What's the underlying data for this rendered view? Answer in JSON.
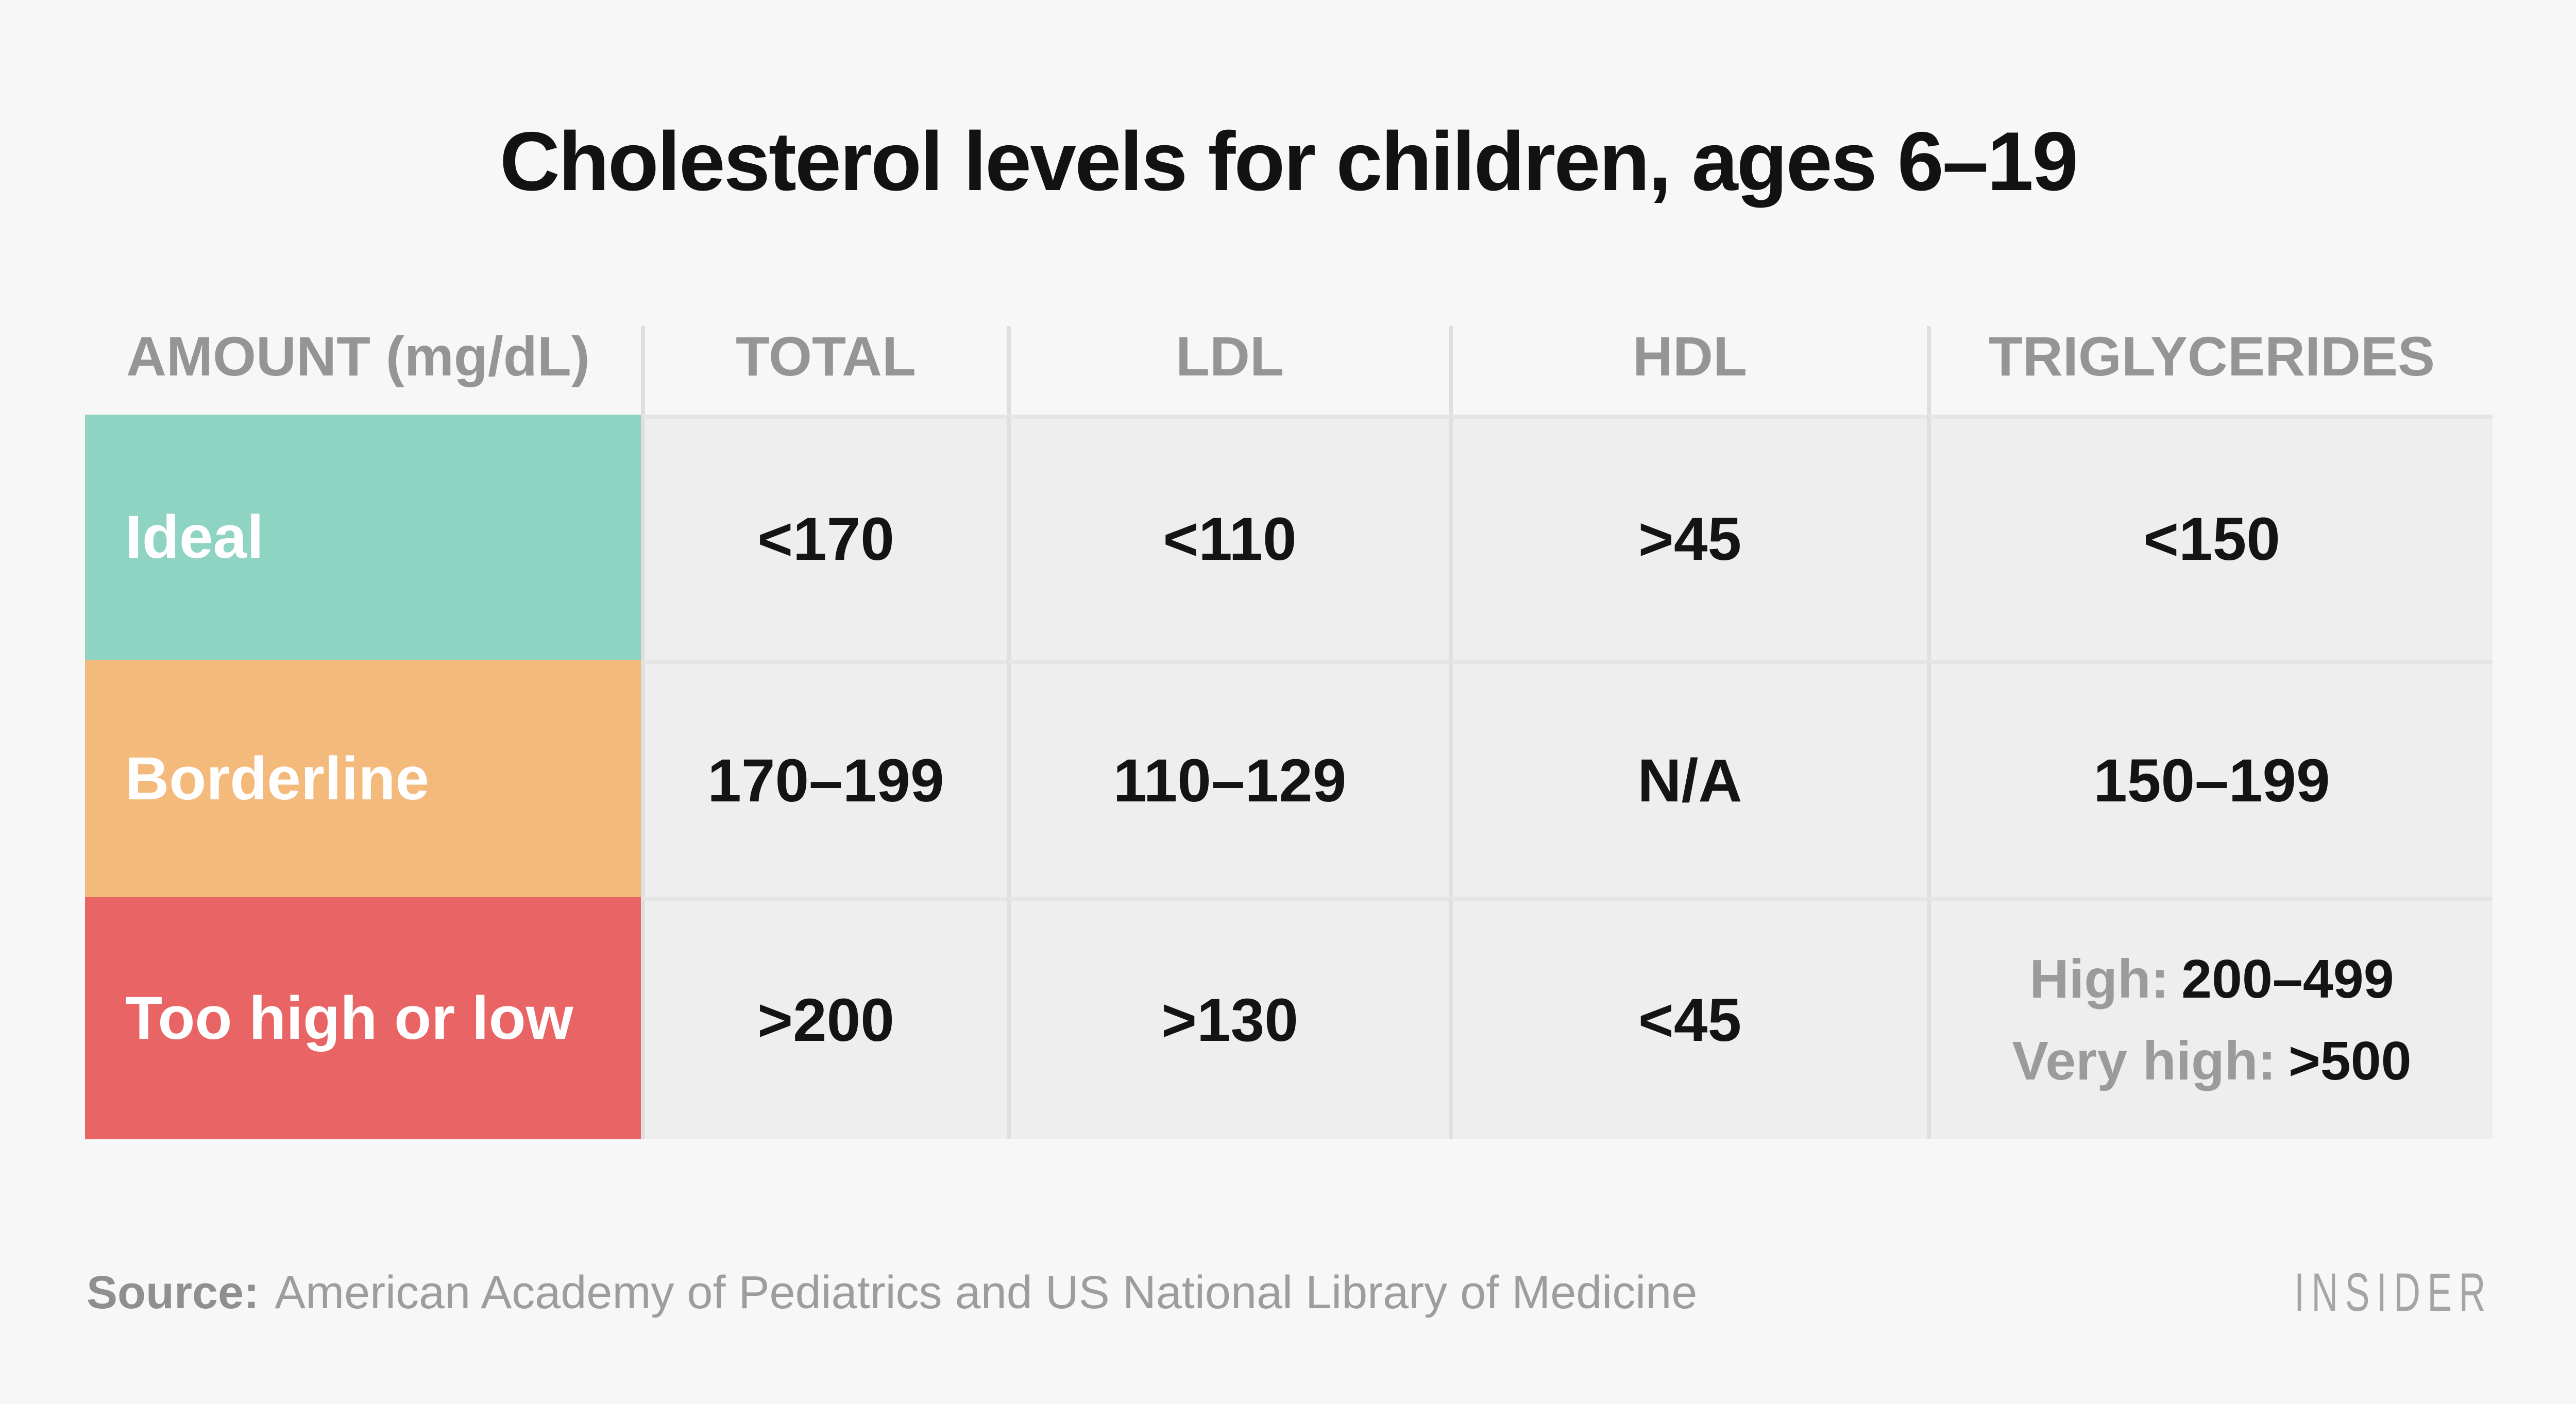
{
  "title": "Cholesterol levels for children, ages 6–19",
  "header": [
    "AMOUNT (mg/dL)",
    "TOTAL",
    "LDL",
    "HDL",
    "TRIGLYCERIDES"
  ],
  "rows": {
    "ideal": {
      "label": "Ideal",
      "total": "<170",
      "ldl": "<110",
      "hdl": ">45",
      "tg": "<150"
    },
    "borderline": {
      "label": "Borderline",
      "total": "170–199",
      "ldl": "110–129",
      "hdl": "N/A",
      "tg": "150–199"
    },
    "too_high_or_low": {
      "label": "Too high or low",
      "total": ">200",
      "ldl": ">130",
      "hdl": "<45",
      "tg_high_label": "High:",
      "tg_high_value": "200–499",
      "tg_very_high_label": "Very high:",
      "tg_very_high_value": ">500"
    }
  },
  "colors": {
    "ideal_row": "#8fd3c2",
    "borderline_row": "#f4ba7c",
    "too_high_or_low_row": "#e96565",
    "header_text": "#959595",
    "value_text": "#141414",
    "cell_bg": "#eeeeee",
    "alt_cell_bg": "#f7f7f7",
    "page_bg": "#f7f7f7",
    "divider": "#dfdfdf"
  },
  "footer": {
    "source_label": "Source:",
    "source_text": "American Academy of Pediatrics and US National Library of Medicine",
    "brand": "INSIDER"
  },
  "chart_data": {
    "type": "table",
    "title": "Cholesterol levels for children, ages 6–19",
    "columns": [
      "AMOUNT (mg/dL)",
      "TOTAL",
      "LDL",
      "HDL",
      "TRIGLYCERIDES"
    ],
    "rows": [
      [
        "Ideal",
        "<170",
        "<110",
        ">45",
        "<150"
      ],
      [
        "Borderline",
        "170–199",
        "110–129",
        "N/A",
        "150–199"
      ],
      [
        "Too high or low",
        ">200",
        ">130",
        "<45",
        "High: 200–499 / Very high: >500"
      ]
    ],
    "row_colors": [
      "#8fd3c2",
      "#f4ba7c",
      "#e96565"
    ],
    "units": "mg/dL",
    "source": "American Academy of Pediatrics and US National Library of Medicine",
    "brand": "INSIDER"
  }
}
